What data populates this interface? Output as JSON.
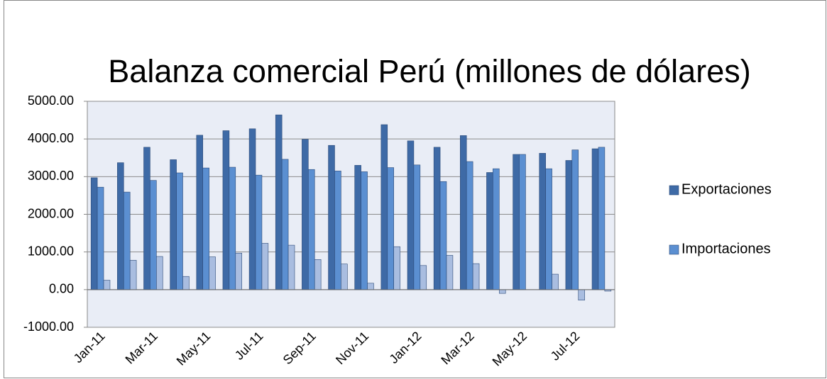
{
  "chart_data": {
    "type": "bar",
    "title": "Balanza comercial Perú (millones de dólares)",
    "categories": [
      "Jan-11",
      null,
      "Mar-11",
      null,
      "May-11",
      null,
      "Jul-11",
      null,
      "Sep-11",
      null,
      "Nov-11",
      null,
      "Jan-12",
      null,
      "Mar-12",
      null,
      "May-12",
      null,
      "Jul-12",
      null
    ],
    "series": [
      {
        "name": "Exportaciones",
        "color": "#3e6aa6",
        "values": [
          2970,
          3370,
          3780,
          3450,
          4100,
          4220,
          4270,
          4640,
          3990,
          3830,
          3300,
          4380,
          3950,
          3780,
          4090,
          3110,
          3590,
          3620,
          3430,
          3740
        ]
      },
      {
        "name": "Importaciones",
        "color": "#5b8fd1",
        "values": [
          2720,
          2590,
          2900,
          3100,
          3230,
          3250,
          3040,
          3460,
          3190,
          3150,
          3130,
          3240,
          3310,
          2870,
          3400,
          3210,
          3590,
          3210,
          3710,
          3780
        ]
      },
      {
        "color": "#a9bde0",
        "values": [
          250,
          780,
          880,
          350,
          870,
          970,
          1230,
          1180,
          800,
          680,
          170,
          1140,
          640,
          910,
          690,
          -100,
          0,
          410,
          -280,
          -40
        ]
      }
    ],
    "ylim": [
      -1000,
      5000
    ],
    "yticks": [
      {
        "value": -1000,
        "label": "-1000.00"
      },
      {
        "value": 0,
        "label": "0.00"
      },
      {
        "value": 1000,
        "label": "1000.00"
      },
      {
        "value": 2000,
        "label": "2000.00"
      },
      {
        "value": 3000,
        "label": "3000.00"
      },
      {
        "value": 4000,
        "label": "4000.00"
      },
      {
        "value": 5000,
        "label": "5000.00"
      }
    ],
    "grid": true,
    "legend": "right"
  }
}
